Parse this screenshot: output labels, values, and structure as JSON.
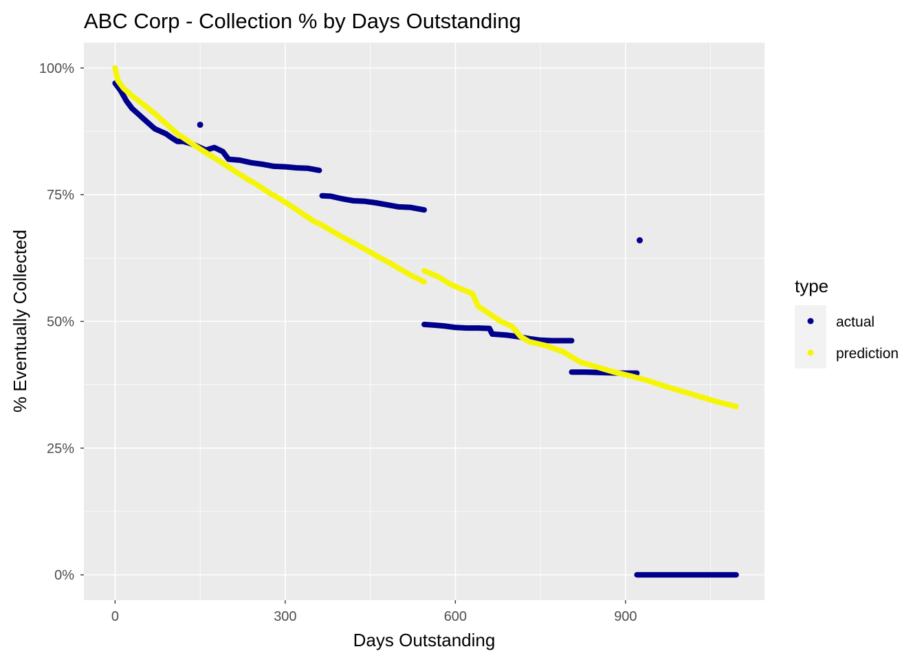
{
  "chart_data": {
    "type": "scatter",
    "title": "ABC Corp  - Collection % by Days Outstanding",
    "xlabel": "Days Outstanding",
    "ylabel": "% Eventually Collected",
    "xlim": [
      -55,
      1145
    ],
    "ylim": [
      -0.05,
      1.05
    ],
    "x_ticks": [
      0,
      300,
      600,
      900
    ],
    "x_tick_labels": [
      "0",
      "300",
      "600",
      "900"
    ],
    "y_ticks": [
      0,
      0.25,
      0.5,
      0.75,
      1.0
    ],
    "y_tick_labels": [
      "0%",
      "25%",
      "50%",
      "75%",
      "100%"
    ],
    "grid": true,
    "legend": {
      "title": "type",
      "placement": "right"
    },
    "series": [
      {
        "name": "actual",
        "color": "#00008B",
        "segments": [
          [
            [
              0,
              0.97
            ],
            [
              10,
              0.955
            ],
            [
              20,
              0.935
            ],
            [
              30,
              0.92
            ],
            [
              40,
              0.91
            ],
            [
              50,
              0.9
            ],
            [
              60,
              0.89
            ],
            [
              70,
              0.88
            ],
            [
              80,
              0.875
            ],
            [
              90,
              0.87
            ],
            [
              100,
              0.862
            ],
            [
              110,
              0.855
            ],
            [
              120,
              0.855
            ],
            [
              130,
              0.852
            ],
            [
              140,
              0.848
            ],
            [
              150,
              0.843
            ],
            [
              160,
              0.838
            ],
            [
              175,
              0.843
            ],
            [
              190,
              0.835
            ],
            [
              200,
              0.82
            ],
            [
              220,
              0.818
            ],
            [
              240,
              0.813
            ],
            [
              260,
              0.81
            ],
            [
              280,
              0.806
            ],
            [
              300,
              0.805
            ],
            [
              320,
              0.803
            ],
            [
              340,
              0.802
            ],
            [
              360,
              0.798
            ]
          ],
          [
            [
              365,
              0.748
            ],
            [
              380,
              0.747
            ],
            [
              400,
              0.742
            ],
            [
              420,
              0.738
            ],
            [
              440,
              0.737
            ],
            [
              460,
              0.734
            ],
            [
              480,
              0.73
            ],
            [
              500,
              0.726
            ],
            [
              520,
              0.725
            ],
            [
              545,
              0.72
            ]
          ],
          [
            [
              545,
              0.494
            ],
            [
              560,
              0.493
            ],
            [
              580,
              0.491
            ],
            [
              600,
              0.488
            ],
            [
              620,
              0.487
            ],
            [
              640,
              0.487
            ],
            [
              660,
              0.486
            ],
            [
              665,
              0.475
            ],
            [
              690,
              0.473
            ],
            [
              710,
              0.47
            ],
            [
              730,
              0.466
            ],
            [
              750,
              0.463
            ],
            [
              770,
              0.462
            ],
            [
              790,
              0.462
            ],
            [
              805,
              0.462
            ]
          ],
          [
            [
              805,
              0.4
            ],
            [
              830,
              0.4
            ],
            [
              860,
              0.399
            ],
            [
              890,
              0.398
            ],
            [
              920,
              0.398
            ]
          ],
          [
            [
              920,
              0.0
            ],
            [
              950,
              0.0
            ],
            [
              980,
              0.0
            ],
            [
              1010,
              0.0
            ],
            [
              1040,
              0.0
            ],
            [
              1070,
              0.0
            ],
            [
              1095,
              0.0
            ]
          ]
        ],
        "outliers": [
          [
            150,
            0.888
          ],
          [
            925,
            0.66
          ]
        ]
      },
      {
        "name": "prediction",
        "color": "#F5F50A",
        "segments": [
          [
            [
              0,
              1.0
            ],
            [
              5,
              0.975
            ],
            [
              15,
              0.96
            ],
            [
              30,
              0.945
            ],
            [
              50,
              0.928
            ],
            [
              70,
              0.91
            ],
            [
              90,
              0.89
            ],
            [
              110,
              0.87
            ],
            [
              130,
              0.855
            ],
            [
              150,
              0.84
            ],
            [
              170,
              0.826
            ],
            [
              190,
              0.812
            ],
            [
              210,
              0.797
            ],
            [
              230,
              0.783
            ],
            [
              250,
              0.77
            ],
            [
              270,
              0.755
            ],
            [
              290,
              0.742
            ],
            [
              310,
              0.728
            ],
            [
              330,
              0.713
            ],
            [
              350,
              0.698
            ],
            [
              365,
              0.69
            ],
            [
              380,
              0.68
            ],
            [
              400,
              0.667
            ],
            [
              420,
              0.655
            ],
            [
              440,
              0.643
            ],
            [
              460,
              0.63
            ],
            [
              480,
              0.618
            ],
            [
              500,
              0.605
            ],
            [
              520,
              0.592
            ],
            [
              545,
              0.578
            ]
          ],
          [
            [
              545,
              0.6
            ],
            [
              570,
              0.588
            ],
            [
              590,
              0.574
            ],
            [
              610,
              0.564
            ],
            [
              630,
              0.555
            ],
            [
              640,
              0.53
            ],
            [
              660,
              0.515
            ],
            [
              680,
              0.5
            ],
            [
              700,
              0.49
            ],
            [
              715,
              0.47
            ],
            [
              730,
              0.46
            ],
            [
              760,
              0.452
            ],
            [
              790,
              0.44
            ],
            [
              820,
              0.42
            ],
            [
              850,
              0.41
            ],
            [
              880,
              0.4
            ],
            [
              910,
              0.392
            ],
            [
              940,
              0.383
            ],
            [
              970,
              0.372
            ],
            [
              1000,
              0.362
            ],
            [
              1030,
              0.352
            ],
            [
              1060,
              0.342
            ],
            [
              1095,
              0.332
            ]
          ]
        ],
        "outliers": []
      }
    ]
  }
}
